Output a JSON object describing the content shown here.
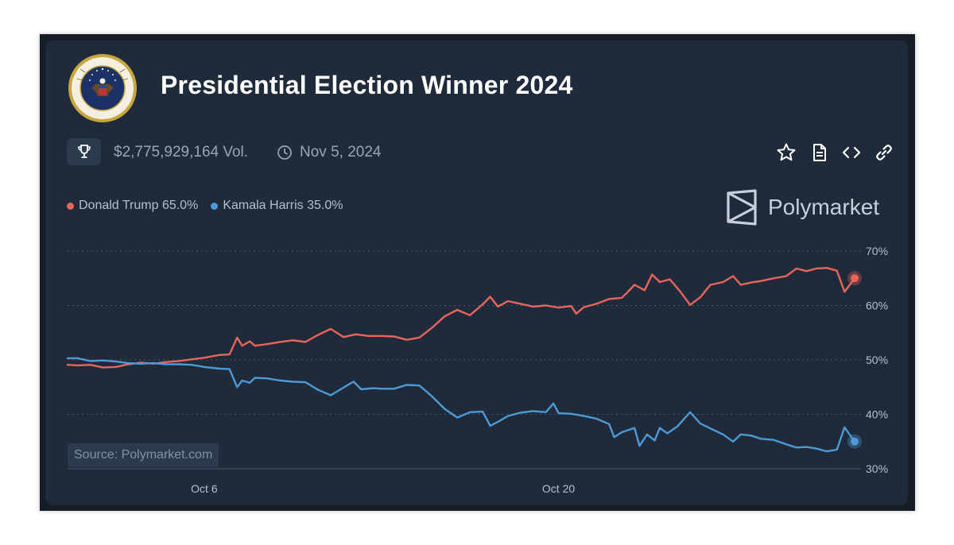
{
  "header": {
    "title": "Presidential Election Winner 2024",
    "volume": "$2,775,929,164 Vol.",
    "end_date": "Nov 5, 2024"
  },
  "brand": {
    "name": "Polymarket"
  },
  "source_label": "Source: Polymarket.com",
  "icons": {
    "seal": "presidential-seal-icon",
    "volume": "trophy-icon",
    "date": "clock-icon",
    "toolbar": [
      "star-icon",
      "document-icon",
      "embed-code-icon",
      "link-icon"
    ]
  },
  "colors": {
    "trump": "#e8655b",
    "harris": "#4d9ad6",
    "background": "#1f2a3a"
  },
  "chart_data": {
    "type": "line",
    "x_tick_labels": [
      "Oct 6",
      "Oct 20"
    ],
    "x_tick_days": [
      6,
      20
    ],
    "x_range": [
      0.6,
      31.7
    ],
    "y_ticks": [
      30,
      40,
      50,
      60,
      70
    ],
    "y_tick_labels": [
      "30%",
      "40%",
      "50%",
      "60%",
      "70%"
    ],
    "ylim": [
      30,
      70
    ],
    "grid": true,
    "legend_position": "top-left",
    "series": [
      {
        "name": "Donald Trump",
        "legend_label": "Donald Trump 65.0%",
        "color": "#e8655b",
        "points": [
          [
            0.6,
            49.1
          ],
          [
            1.0,
            49.0
          ],
          [
            1.5,
            49.1
          ],
          [
            2.0,
            48.6
          ],
          [
            2.5,
            48.7
          ],
          [
            3.0,
            49.2
          ],
          [
            3.5,
            49.5
          ],
          [
            4.0,
            49.3
          ],
          [
            4.5,
            49.6
          ],
          [
            5.0,
            49.8
          ],
          [
            5.5,
            50.1
          ],
          [
            6.0,
            50.4
          ],
          [
            6.6,
            50.9
          ],
          [
            7.0,
            51.0
          ],
          [
            7.3,
            54.1
          ],
          [
            7.5,
            52.6
          ],
          [
            7.8,
            53.4
          ],
          [
            8.0,
            52.6
          ],
          [
            8.5,
            52.9
          ],
          [
            9.0,
            53.3
          ],
          [
            9.5,
            53.6
          ],
          [
            10.0,
            53.3
          ],
          [
            10.5,
            54.6
          ],
          [
            11.0,
            55.7
          ],
          [
            11.5,
            54.2
          ],
          [
            12.0,
            54.7
          ],
          [
            12.5,
            54.4
          ],
          [
            13.0,
            54.4
          ],
          [
            13.5,
            54.3
          ],
          [
            14.0,
            53.7
          ],
          [
            14.5,
            54.1
          ],
          [
            15.0,
            55.9
          ],
          [
            15.5,
            58.0
          ],
          [
            16.0,
            59.2
          ],
          [
            16.5,
            58.2
          ],
          [
            17.0,
            60.2
          ],
          [
            17.3,
            61.6
          ],
          [
            17.6,
            59.8
          ],
          [
            18.0,
            60.8
          ],
          [
            18.5,
            60.3
          ],
          [
            19.0,
            59.8
          ],
          [
            19.5,
            60.0
          ],
          [
            20.0,
            59.6
          ],
          [
            20.5,
            59.9
          ],
          [
            20.7,
            58.5
          ],
          [
            21.0,
            59.7
          ],
          [
            21.5,
            60.3
          ],
          [
            22.0,
            61.2
          ],
          [
            22.5,
            61.4
          ],
          [
            22.7,
            62.3
          ],
          [
            23.0,
            63.8
          ],
          [
            23.4,
            62.8
          ],
          [
            23.7,
            65.7
          ],
          [
            24.0,
            64.3
          ],
          [
            24.4,
            64.8
          ],
          [
            24.8,
            62.6
          ],
          [
            25.2,
            60.1
          ],
          [
            25.6,
            61.5
          ],
          [
            26.0,
            63.8
          ],
          [
            26.5,
            64.3
          ],
          [
            26.9,
            65.4
          ],
          [
            27.2,
            63.8
          ],
          [
            27.6,
            64.2
          ],
          [
            28.0,
            64.5
          ],
          [
            28.5,
            65.0
          ],
          [
            29.0,
            65.4
          ],
          [
            29.4,
            66.8
          ],
          [
            29.8,
            66.3
          ],
          [
            30.2,
            66.8
          ],
          [
            30.6,
            66.9
          ],
          [
            31.0,
            66.4
          ],
          [
            31.3,
            62.5
          ],
          [
            31.7,
            65.0
          ]
        ]
      },
      {
        "name": "Kamala Harris",
        "legend_label": "Kamala Harris 35.0%",
        "color": "#4d9ad6",
        "points": [
          [
            0.6,
            50.3
          ],
          [
            1.0,
            50.3
          ],
          [
            1.5,
            49.8
          ],
          [
            2.0,
            49.9
          ],
          [
            2.5,
            49.7
          ],
          [
            3.0,
            49.4
          ],
          [
            3.5,
            49.3
          ],
          [
            4.0,
            49.4
          ],
          [
            4.5,
            49.2
          ],
          [
            5.0,
            49.2
          ],
          [
            5.5,
            49.1
          ],
          [
            6.0,
            48.7
          ],
          [
            6.6,
            48.4
          ],
          [
            7.0,
            48.3
          ],
          [
            7.3,
            45.0
          ],
          [
            7.5,
            46.2
          ],
          [
            7.8,
            45.8
          ],
          [
            8.0,
            46.7
          ],
          [
            8.5,
            46.6
          ],
          [
            9.0,
            46.2
          ],
          [
            9.5,
            46.0
          ],
          [
            10.0,
            45.9
          ],
          [
            10.5,
            44.5
          ],
          [
            11.0,
            43.5
          ],
          [
            11.5,
            44.9
          ],
          [
            11.9,
            46.0
          ],
          [
            12.2,
            44.6
          ],
          [
            12.7,
            44.8
          ],
          [
            13.0,
            44.7
          ],
          [
            13.5,
            44.7
          ],
          [
            14.0,
            45.4
          ],
          [
            14.5,
            45.3
          ],
          [
            15.0,
            43.3
          ],
          [
            15.5,
            41.0
          ],
          [
            16.0,
            39.4
          ],
          [
            16.5,
            40.4
          ],
          [
            17.0,
            40.5
          ],
          [
            17.3,
            37.9
          ],
          [
            17.6,
            38.6
          ],
          [
            18.0,
            39.7
          ],
          [
            18.5,
            40.3
          ],
          [
            19.0,
            40.6
          ],
          [
            19.5,
            40.4
          ],
          [
            19.8,
            42.0
          ],
          [
            20.0,
            40.2
          ],
          [
            20.5,
            40.1
          ],
          [
            21.0,
            39.7
          ],
          [
            21.5,
            39.2
          ],
          [
            22.0,
            38.2
          ],
          [
            22.2,
            35.8
          ],
          [
            22.5,
            36.7
          ],
          [
            23.0,
            37.5
          ],
          [
            23.2,
            34.2
          ],
          [
            23.5,
            36.3
          ],
          [
            23.8,
            35.2
          ],
          [
            24.0,
            37.5
          ],
          [
            24.3,
            36.5
          ],
          [
            24.7,
            37.8
          ],
          [
            25.2,
            40.4
          ],
          [
            25.6,
            38.3
          ],
          [
            26.0,
            37.4
          ],
          [
            26.5,
            36.3
          ],
          [
            26.9,
            35.0
          ],
          [
            27.2,
            36.3
          ],
          [
            27.6,
            36.1
          ],
          [
            28.0,
            35.5
          ],
          [
            28.5,
            35.3
          ],
          [
            29.0,
            34.5
          ],
          [
            29.4,
            33.9
          ],
          [
            29.8,
            34.0
          ],
          [
            30.2,
            33.7
          ],
          [
            30.6,
            33.2
          ],
          [
            31.0,
            33.5
          ],
          [
            31.3,
            37.6
          ],
          [
            31.7,
            35.0
          ]
        ]
      }
    ]
  }
}
